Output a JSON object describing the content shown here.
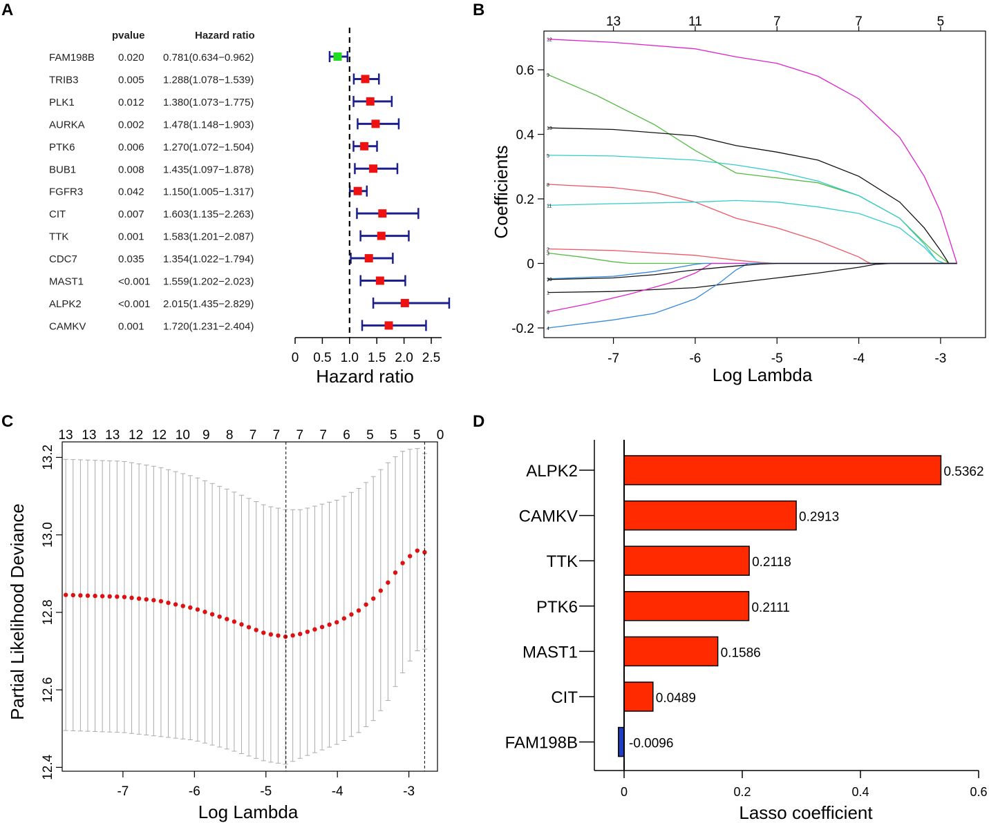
{
  "panel_labels": [
    "A",
    "B",
    "C",
    "D"
  ],
  "colors": {
    "ci_bar": "#1a1f8c",
    "hr_protective": "#22dd22",
    "hr_risk": "#ee1111",
    "cv_point": "#dd1111",
    "cv_errorbar": "#aaaaaa",
    "lasso_pos": "#ff2a00",
    "lasso_neg": "#1f3fbf"
  },
  "chart_data": [
    {
      "panel": "A",
      "type": "forest",
      "columns": {
        "gene": "",
        "pvalue": "pvalue",
        "hr": "Hazard ratio"
      },
      "xlabel": "Hazard ratio",
      "xlim": [
        0,
        2.6
      ],
      "xticks": [
        "0",
        "0.5",
        "1.0",
        "1.5",
        "2.0",
        "2.5"
      ],
      "reference_line": 1,
      "rows": [
        {
          "gene": "FAM198B",
          "pvalue": "0.020",
          "hr_text": "0.781(0.634−0.962)",
          "hr": 0.781,
          "lo": 0.634,
          "hi": 0.962
        },
        {
          "gene": "TRIB3",
          "pvalue": "0.005",
          "hr_text": "1.288(1.078−1.539)",
          "hr": 1.288,
          "lo": 1.078,
          "hi": 1.539
        },
        {
          "gene": "PLK1",
          "pvalue": "0.012",
          "hr_text": "1.380(1.073−1.775)",
          "hr": 1.38,
          "lo": 1.073,
          "hi": 1.775
        },
        {
          "gene": "AURKA",
          "pvalue": "0.002",
          "hr_text": "1.478(1.148−1.903)",
          "hr": 1.478,
          "lo": 1.148,
          "hi": 1.903
        },
        {
          "gene": "PTK6",
          "pvalue": "0.006",
          "hr_text": "1.270(1.072−1.504)",
          "hr": 1.27,
          "lo": 1.072,
          "hi": 1.504
        },
        {
          "gene": "BUB1",
          "pvalue": "0.008",
          "hr_text": "1.435(1.097−1.878)",
          "hr": 1.435,
          "lo": 1.097,
          "hi": 1.878
        },
        {
          "gene": "FGFR3",
          "pvalue": "0.042",
          "hr_text": "1.150(1.005−1.317)",
          "hr": 1.15,
          "lo": 1.005,
          "hi": 1.317
        },
        {
          "gene": "CIT",
          "pvalue": "0.007",
          "hr_text": "1.603(1.135−2.263)",
          "hr": 1.603,
          "lo": 1.135,
          "hi": 2.263
        },
        {
          "gene": "TTK",
          "pvalue": "0.001",
          "hr_text": "1.583(1.201−2.087)",
          "hr": 1.583,
          "lo": 1.201,
          "hi": 2.087
        },
        {
          "gene": "CDC7",
          "pvalue": "0.035",
          "hr_text": "1.354(1.022−1.794)",
          "hr": 1.354,
          "lo": 1.022,
          "hi": 1.794
        },
        {
          "gene": "MAST1",
          "pvalue": "<0.001",
          "hr_text": "1.559(1.202−2.023)",
          "hr": 1.559,
          "lo": 1.202,
          "hi": 2.023
        },
        {
          "gene": "ALPK2",
          "pvalue": "<0.001",
          "hr_text": "2.015(1.435−2.829)",
          "hr": 2.015,
          "lo": 1.435,
          "hi": 2.829
        },
        {
          "gene": "CAMKV",
          "pvalue": "0.001",
          "hr_text": "1.720(1.231−2.404)",
          "hr": 1.72,
          "lo": 1.231,
          "hi": 2.404
        }
      ]
    },
    {
      "panel": "B",
      "type": "line",
      "xlabel": "Log Lambda",
      "ylabel": "Coefficients",
      "xlim": [
        -7.85,
        -2.45
      ],
      "ylim": [
        -0.23,
        0.72
      ],
      "xticks": [
        -7,
        -6,
        -5,
        -4,
        -3
      ],
      "yticks": [
        -0.2,
        0,
        0.2,
        0.4,
        0.6
      ],
      "ytick_labels": [
        "-0.2",
        "0",
        "0.2",
        "0.4",
        "0.6"
      ],
      "top_axis": [
        {
          "x": -7,
          "label": "13"
        },
        {
          "x": -6,
          "label": "11"
        },
        {
          "x": -5,
          "label": "7"
        },
        {
          "x": -4,
          "label": "7"
        },
        {
          "x": -3,
          "label": "5"
        }
      ],
      "series": [
        {
          "name": "12",
          "color": "#dd22cc",
          "x": [
            -7.8,
            -7.0,
            -6.0,
            -5.5,
            -5.0,
            -4.5,
            -4.0,
            -3.5,
            -3.2,
            -3.0,
            -2.9,
            -2.8
          ],
          "y": [
            0.695,
            0.685,
            0.665,
            0.64,
            0.62,
            0.58,
            0.51,
            0.39,
            0.27,
            0.16,
            0.08,
            0.0
          ]
        },
        {
          "name": "9",
          "color": "#55bb44",
          "x": [
            -7.8,
            -7.2,
            -6.5,
            -6.0,
            -5.5,
            -5.0,
            -4.5,
            -4.0,
            -3.5,
            -3.1,
            -2.9,
            -2.8
          ],
          "y": [
            0.585,
            0.52,
            0.43,
            0.35,
            0.28,
            0.265,
            0.25,
            0.21,
            0.14,
            0.04,
            0.0,
            0.0
          ]
        },
        {
          "name": "13",
          "color": "#111111",
          "x": [
            -7.8,
            -7.0,
            -6.0,
            -5.5,
            -5.0,
            -4.5,
            -4.0,
            -3.5,
            -3.2,
            -3.0,
            -2.9,
            -2.8
          ],
          "y": [
            0.42,
            0.415,
            0.395,
            0.365,
            0.345,
            0.32,
            0.27,
            0.19,
            0.11,
            0.04,
            0.0,
            0.0
          ]
        },
        {
          "name": "5",
          "color": "#33cccc",
          "x": [
            -7.8,
            -7.0,
            -6.0,
            -5.5,
            -5.0,
            -4.5,
            -4.0,
            -3.5,
            -3.2,
            -3.05,
            -2.95
          ],
          "y": [
            0.335,
            0.333,
            0.32,
            0.305,
            0.285,
            0.255,
            0.21,
            0.14,
            0.06,
            0.01,
            0.0
          ]
        },
        {
          "name": "8",
          "color": "#ee5566",
          "x": [
            -7.8,
            -7.0,
            -6.5,
            -6.0,
            -5.5,
            -5.0,
            -4.5,
            -4.0,
            -3.9,
            -3.85
          ],
          "y": [
            0.245,
            0.235,
            0.22,
            0.19,
            0.14,
            0.11,
            0.07,
            0.02,
            0.005,
            0.0
          ]
        },
        {
          "name": "11",
          "color": "#33cccc",
          "x": [
            -7.8,
            -7.0,
            -6.0,
            -5.5,
            -5.0,
            -4.5,
            -4.0,
            -3.5,
            -3.2,
            -3.05,
            -2.95
          ],
          "y": [
            0.18,
            0.185,
            0.19,
            0.195,
            0.19,
            0.175,
            0.155,
            0.11,
            0.05,
            0.01,
            0.0
          ]
        },
        {
          "name": "2",
          "color": "#ee5566",
          "x": [
            -7.8,
            -7.0,
            -6.0,
            -5.5,
            -5.2,
            -5.0
          ],
          "y": [
            0.045,
            0.04,
            0.025,
            0.01,
            0.003,
            0.0
          ]
        },
        {
          "name": "3",
          "color": "#55bb44",
          "x": [
            -7.8,
            -7.4,
            -7.0,
            -6.8,
            -6.7
          ],
          "y": [
            0.032,
            0.02,
            0.005,
            0.0,
            0.0
          ]
        },
        {
          "name": "10",
          "color": "#3388dd",
          "x": [
            -7.8,
            -7.0,
            -6.5,
            -6.0,
            -5.9
          ],
          "y": [
            -0.048,
            -0.04,
            -0.025,
            -0.003,
            0.0
          ]
        },
        {
          "name": "1",
          "color": "#111111",
          "x": [
            -7.8,
            -7.0,
            -6.0,
            -5.5,
            -5.0,
            -4.5,
            -4.0,
            -3.8,
            -3.6
          ],
          "y": [
            -0.09,
            -0.087,
            -0.075,
            -0.06,
            -0.045,
            -0.03,
            -0.012,
            -0.003,
            0.0
          ]
        },
        {
          "name": "6",
          "color": "#dd22cc",
          "x": [
            -7.8,
            -7.3,
            -6.8,
            -6.3,
            -6.0,
            -5.8
          ],
          "y": [
            -0.15,
            -0.125,
            -0.095,
            -0.06,
            -0.03,
            0.0
          ]
        },
        {
          "name": "4",
          "color": "#3388dd",
          "x": [
            -7.8,
            -7.0,
            -6.5,
            -6.0,
            -5.7,
            -5.5,
            -5.35
          ],
          "y": [
            -0.2,
            -0.175,
            -0.155,
            -0.11,
            -0.06,
            -0.02,
            0.0
          ]
        },
        {
          "name": "7",
          "color": "#111111",
          "x": [
            -7.8,
            -7.0,
            -6.5,
            -6.0,
            -5.5,
            -5.2,
            -5.0
          ],
          "y": [
            -0.05,
            -0.045,
            -0.035,
            -0.02,
            -0.008,
            -0.002,
            0.0
          ]
        }
      ]
    },
    {
      "panel": "C",
      "type": "scatter",
      "xlabel": "Log Lambda",
      "ylabel": "Partial Likelihood Deviance",
      "xlim": [
        -7.85,
        -2.6
      ],
      "ylim": [
        12.39,
        13.24
      ],
      "xticks": [
        -7,
        -6,
        -5,
        -4,
        -3
      ],
      "yticks": [
        12.4,
        12.6,
        12.8,
        13.0,
        13.2
      ],
      "ytick_labels": [
        "12.4",
        "12.6",
        "12.8",
        "13.0",
        "13.2"
      ],
      "top_axis_labels": [
        "13",
        "13",
        "13",
        "12",
        "12",
        "10",
        "9",
        "8",
        "7",
        "7",
        "7",
        "7",
        "6",
        "5",
        "5",
        "5",
        "0"
      ],
      "vlines": [
        -4.72,
        -2.78
      ],
      "x_start": -7.8,
      "x_end": -2.78,
      "n_points": 50,
      "curve": {
        "x": [
          -7.8,
          -7.0,
          -6.5,
          -6.0,
          -5.5,
          -5.0,
          -4.72,
          -4.5,
          -4.0,
          -3.7,
          -3.5,
          -3.3,
          -3.1,
          -2.9,
          -2.78
        ],
        "mean": [
          12.845,
          12.84,
          12.83,
          12.81,
          12.78,
          12.745,
          12.737,
          12.745,
          12.775,
          12.805,
          12.835,
          12.875,
          12.925,
          12.96,
          12.955
        ],
        "upper": [
          13.195,
          13.19,
          13.175,
          13.15,
          13.115,
          13.075,
          13.065,
          13.065,
          13.09,
          13.12,
          13.15,
          13.185,
          13.215,
          13.225,
          13.21
        ],
        "lower": [
          12.495,
          12.49,
          12.48,
          12.47,
          12.445,
          12.415,
          12.408,
          12.425,
          12.46,
          12.49,
          12.52,
          12.57,
          12.64,
          12.7,
          12.705
        ]
      }
    },
    {
      "panel": "D",
      "type": "bar",
      "orientation": "horizontal",
      "xlabel": "Lasso coefficient",
      "xlim": [
        -0.05,
        0.62
      ],
      "xticks": [
        0,
        0.2,
        0.4,
        0.6
      ],
      "xtick_labels": [
        "0",
        "0.2",
        "0.4",
        "0.6"
      ],
      "categories": [
        "ALPK2",
        "CAMKV",
        "TTK",
        "PTK6",
        "MAST1",
        "CIT",
        "FAM198B"
      ],
      "values": [
        0.5362,
        0.2913,
        0.2118,
        0.2111,
        0.1586,
        0.0489,
        -0.0096
      ],
      "value_labels": [
        "0.5362",
        "0.2913",
        "0.2118",
        "0.2111",
        "0.1586",
        "0.0489",
        "-0.0096"
      ]
    }
  ]
}
